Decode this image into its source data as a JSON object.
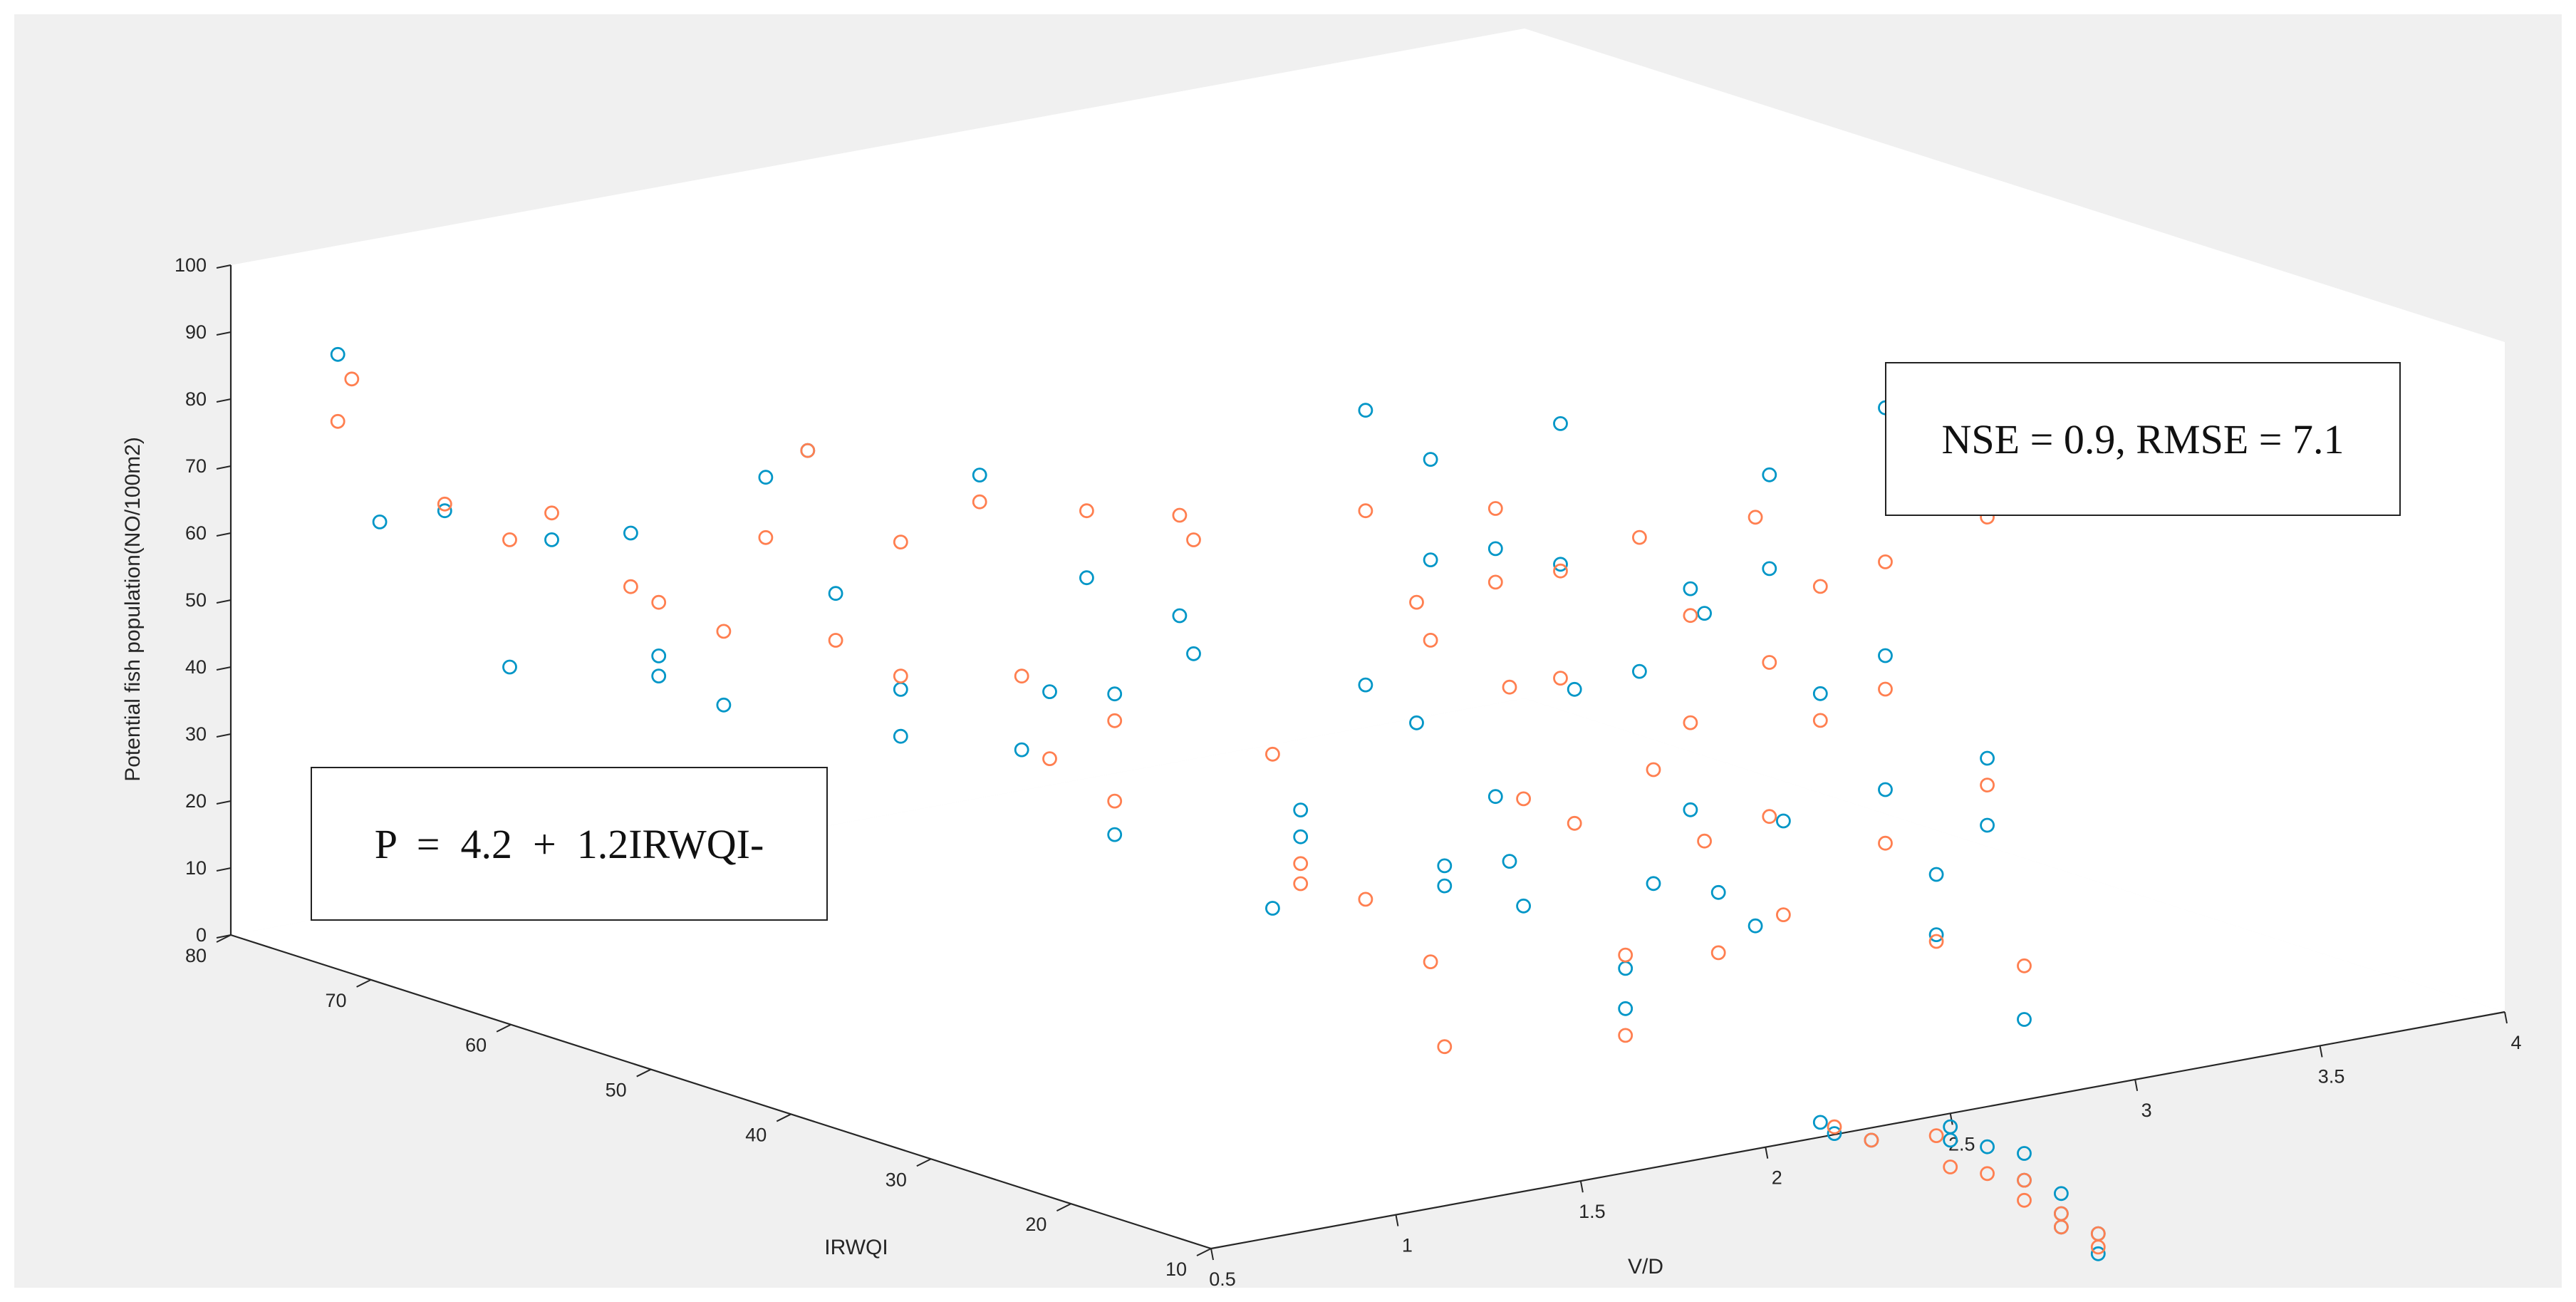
{
  "chart_data": {
    "type": "scatter",
    "projection": "3d",
    "title": "",
    "xlabel": "V/D",
    "ylabel": "IRWQI",
    "zlabel": "Potential fish population(NO/100m2)",
    "xlim": [
      0.5,
      4
    ],
    "ylim": [
      10,
      80
    ],
    "zlim": [
      0,
      100
    ],
    "xticks": [
      "0.5",
      "1",
      "1.5",
      "2",
      "2.5",
      "3",
      "3.5",
      "4"
    ],
    "yticks": [
      "10",
      "20",
      "30",
      "40",
      "50",
      "60",
      "70",
      "80"
    ],
    "zticks": [
      "0",
      "10",
      "20",
      "30",
      "40",
      "50",
      "60",
      "70",
      "80",
      "90",
      "100"
    ],
    "grid": false,
    "annotations": {
      "metrics": "NSE = 0.9, RMSE = 7.1",
      "equation": "P  =  4.2  +  1.2IRWQI-"
    },
    "series": [
      {
        "color": "#0096c7",
        "marker": "circle-open",
        "points": [
          [
            0.6,
            75,
            89
          ],
          [
            0.6,
            72,
            66
          ],
          [
            0.7,
            70,
            68
          ],
          [
            0.8,
            68,
            45
          ],
          [
            0.8,
            65,
            66
          ],
          [
            0.9,
            62,
            68
          ],
          [
            0.9,
            60,
            51
          ],
          [
            0.9,
            60,
            48
          ],
          [
            1.0,
            58,
            44
          ],
          [
            1.0,
            55,
            80
          ],
          [
            1.0,
            52,
            86
          ],
          [
            1.0,
            50,
            66
          ],
          [
            1.1,
            48,
            45
          ],
          [
            1.1,
            48,
            52
          ],
          [
            1.2,
            45,
            85
          ],
          [
            1.2,
            42,
            46
          ],
          [
            1.2,
            40,
            56
          ],
          [
            1.3,
            40,
            72
          ],
          [
            1.3,
            38,
            35
          ],
          [
            1.3,
            38,
            56
          ],
          [
            1.4,
            36,
            68
          ],
          [
            1.4,
            35,
            63
          ],
          [
            1.5,
            32,
            26
          ],
          [
            1.5,
            30,
            42
          ],
          [
            1.5,
            30,
            38
          ],
          [
            1.6,
            28,
            102
          ],
          [
            1.6,
            28,
            61
          ],
          [
            1.7,
            27,
            55
          ],
          [
            1.7,
            26,
            95
          ],
          [
            1.7,
            26,
            80
          ],
          [
            1.7,
            25,
            35
          ],
          [
            1.7,
            25,
            32
          ],
          [
            1.8,
            24,
            82
          ],
          [
            1.8,
            24,
            45
          ],
          [
            1.8,
            23,
            36
          ],
          [
            1.8,
            22,
            30
          ],
          [
            1.9,
            22,
            101
          ],
          [
            1.9,
            22,
            80
          ],
          [
            1.9,
            21,
            62
          ],
          [
            2.0,
            20,
            20
          ],
          [
            2.0,
            20,
            14
          ],
          [
            2.0,
            19,
            65
          ],
          [
            2.0,
            18,
            34
          ],
          [
            2.1,
            18,
            77
          ],
          [
            2.1,
            18,
            44
          ],
          [
            2.1,
            17,
            74
          ],
          [
            2.1,
            16,
            33
          ],
          [
            2.2,
            16,
            27
          ],
          [
            2.2,
            15,
            95
          ],
          [
            2.2,
            15,
            81
          ],
          [
            2.2,
            14,
            44
          ],
          [
            2.3,
            14,
            62
          ],
          [
            2.3,
            14,
            -2
          ],
          [
            2.3,
            13,
            -3
          ],
          [
            2.4,
            13,
            -5
          ],
          [
            2.4,
            12,
            105
          ],
          [
            2.4,
            12,
            68
          ],
          [
            2.4,
            12,
            48
          ],
          [
            2.5,
            11,
            35
          ],
          [
            2.5,
            11,
            26
          ],
          [
            2.5,
            10,
            -2
          ],
          [
            2.5,
            10,
            -4
          ],
          [
            2.6,
            10,
            52
          ],
          [
            2.6,
            10,
            42
          ],
          [
            2.6,
            10,
            -6
          ],
          [
            2.7,
            10,
            12
          ],
          [
            2.7,
            10,
            -8
          ],
          [
            2.7,
            10,
            -12
          ],
          [
            2.8,
            10,
            -15
          ],
          [
            2.8,
            10,
            -18
          ],
          [
            2.8,
            10,
            -20
          ],
          [
            2.9,
            10,
            -22
          ],
          [
            2.9,
            10,
            -25
          ]
        ]
      },
      {
        "color": "#ff7f50",
        "marker": "circle-open",
        "points": [
          [
            0.6,
            75,
            79
          ],
          [
            0.6,
            74,
            86
          ],
          [
            0.7,
            70,
            69
          ],
          [
            0.8,
            68,
            64
          ],
          [
            0.8,
            65,
            70
          ],
          [
            0.9,
            62,
            60
          ],
          [
            0.9,
            60,
            59
          ],
          [
            1.0,
            58,
            55
          ],
          [
            1.0,
            55,
            71
          ],
          [
            1.0,
            52,
            86
          ],
          [
            1.0,
            50,
            59
          ],
          [
            1.1,
            48,
            74
          ],
          [
            1.1,
            48,
            54
          ],
          [
            1.2,
            45,
            81
          ],
          [
            1.2,
            42,
            57
          ],
          [
            1.2,
            40,
            46
          ],
          [
            1.3,
            40,
            82
          ],
          [
            1.3,
            38,
            52
          ],
          [
            1.3,
            38,
            40
          ],
          [
            1.4,
            36,
            83
          ],
          [
            1.4,
            35,
            80
          ],
          [
            1.5,
            32,
            49
          ],
          [
            1.5,
            30,
            34
          ],
          [
            1.5,
            30,
            31
          ],
          [
            1.6,
            28,
            87
          ],
          [
            1.6,
            28,
            29
          ],
          [
            1.7,
            27,
            73
          ],
          [
            1.7,
            26,
            68
          ],
          [
            1.7,
            26,
            20
          ],
          [
            1.7,
            25,
            8
          ],
          [
            1.8,
            24,
            88
          ],
          [
            1.8,
            24,
            77
          ],
          [
            1.8,
            23,
            62
          ],
          [
            1.8,
            22,
            46
          ],
          [
            1.9,
            22,
            79
          ],
          [
            1.9,
            22,
            63
          ],
          [
            1.9,
            21,
            42
          ],
          [
            2.0,
            20,
            22
          ],
          [
            2.0,
            20,
            10
          ],
          [
            2.0,
            19,
            85
          ],
          [
            2.0,
            18,
            51
          ],
          [
            2.1,
            18,
            73
          ],
          [
            2.1,
            18,
            57
          ],
          [
            2.1,
            17,
            40
          ],
          [
            2.1,
            16,
            24
          ],
          [
            2.2,
            16,
            88
          ],
          [
            2.2,
            15,
            67
          ],
          [
            2.2,
            15,
            44
          ],
          [
            2.2,
            14,
            30
          ],
          [
            2.3,
            14,
            78
          ],
          [
            2.3,
            14,
            58
          ],
          [
            2.3,
            13,
            -2
          ],
          [
            2.4,
            13,
            -5
          ],
          [
            2.4,
            12,
            82
          ],
          [
            2.4,
            12,
            63
          ],
          [
            2.4,
            12,
            40
          ],
          [
            2.5,
            11,
            25
          ],
          [
            2.5,
            11,
            -4
          ],
          [
            2.5,
            10,
            -8
          ],
          [
            2.6,
            10,
            88
          ],
          [
            2.6,
            10,
            48
          ],
          [
            2.6,
            10,
            -10
          ],
          [
            2.7,
            10,
            20
          ],
          [
            2.7,
            10,
            -12
          ],
          [
            2.7,
            10,
            -15
          ],
          [
            2.8,
            10,
            -18
          ],
          [
            2.8,
            10,
            -20
          ],
          [
            2.9,
            10,
            -22
          ],
          [
            2.9,
            10,
            -24
          ]
        ]
      }
    ]
  }
}
